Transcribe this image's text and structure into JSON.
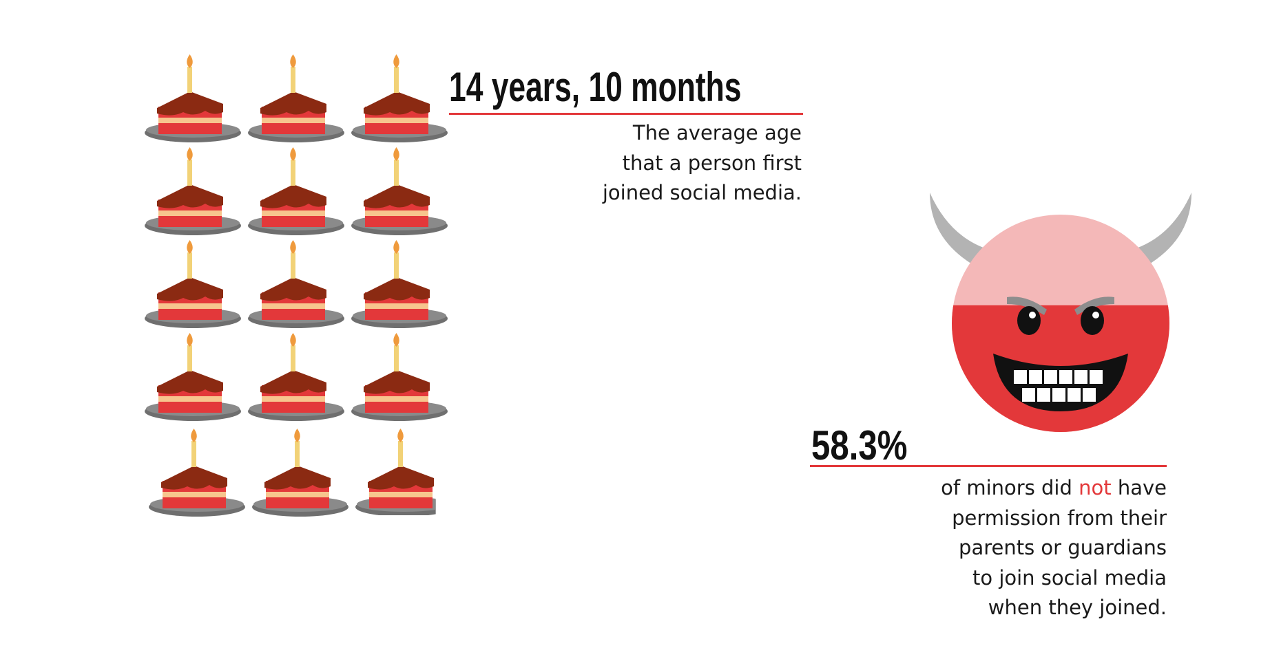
{
  "age_stat": {
    "value": "14 years, 10 months",
    "description": [
      "The average age",
      "that a person first",
      "joined social media."
    ],
    "icon": "birthday-cake-slice-icon",
    "cake_count": 15,
    "cake_shown_fraction": 14.8333
  },
  "permission_stat": {
    "value": "58.3%",
    "description": {
      "line1_before": "of minors did ",
      "line1_highlight": "not",
      "line1_after": " have",
      "lines": [
        "permission from their",
        "parents or guardians",
        "to join social media",
        "when they joined."
      ]
    },
    "icon": "devil-face-icon",
    "fill_fraction": 0.583
  },
  "colors": {
    "accent": "#e3383a",
    "light_accent": "#f4b8b8",
    "frosting": "#8b2a12",
    "sponge": "#f7c58e",
    "plate": "#8a8a8a",
    "horn": "#b3b3b3",
    "text": "#1a1a1a"
  }
}
